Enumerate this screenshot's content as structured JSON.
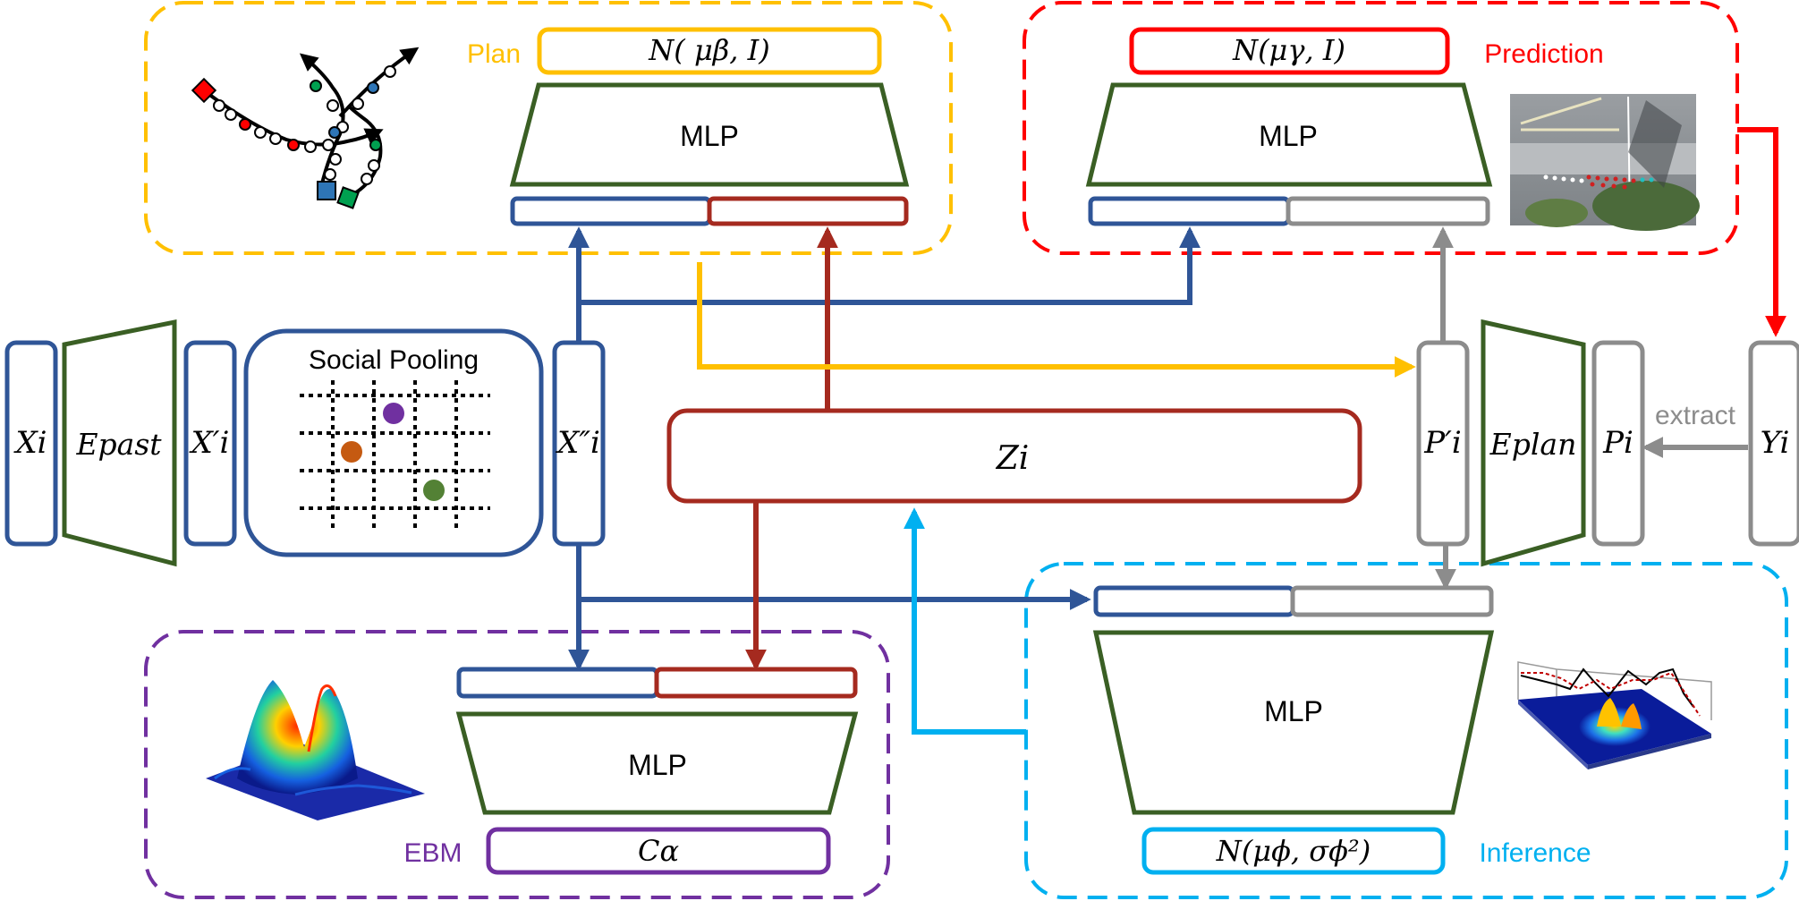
{
  "colors": {
    "blue": "#2F5597",
    "darkred": "#A52A1F",
    "green": "#3A5F24",
    "gray": "#8C8C8C",
    "yellow": "#FFC000",
    "red": "#FF0000",
    "purple": "#7030A0",
    "cyan": "#00B0F0"
  },
  "groups": {
    "plan": {
      "label": "Plan",
      "dist": "N( μβ, I)",
      "mlp": "MLP"
    },
    "prediction": {
      "label": "Prediction",
      "dist": "N(μγ, I)",
      "mlp": "MLP"
    },
    "ebm": {
      "label": "EBM",
      "dist": "Cα",
      "mlp": "MLP"
    },
    "inference": {
      "label": "Inference",
      "dist": "N(μϕ, σϕ²)",
      "mlp": "MLP"
    }
  },
  "blocks": {
    "x_i": "Xi",
    "e_past": "Epast",
    "x_i_prime": "X′i",
    "social_pooling": "Social Pooling",
    "x_i_dprime": "X″i",
    "z_i": "Zi",
    "p_i_prime": "P′i",
    "e_plan": "Eplan",
    "p_i": "Pi",
    "y_i": "Yi"
  },
  "edges": {
    "extract": "extract"
  },
  "icons": {
    "trajectory": "trajectory-sketch-icon",
    "aerial": "aerial-photo-icon",
    "energy_surface": "energy-surface-icon",
    "density_plot": "density-plot-icon",
    "pooling_grid": "pooling-grid-icon"
  }
}
